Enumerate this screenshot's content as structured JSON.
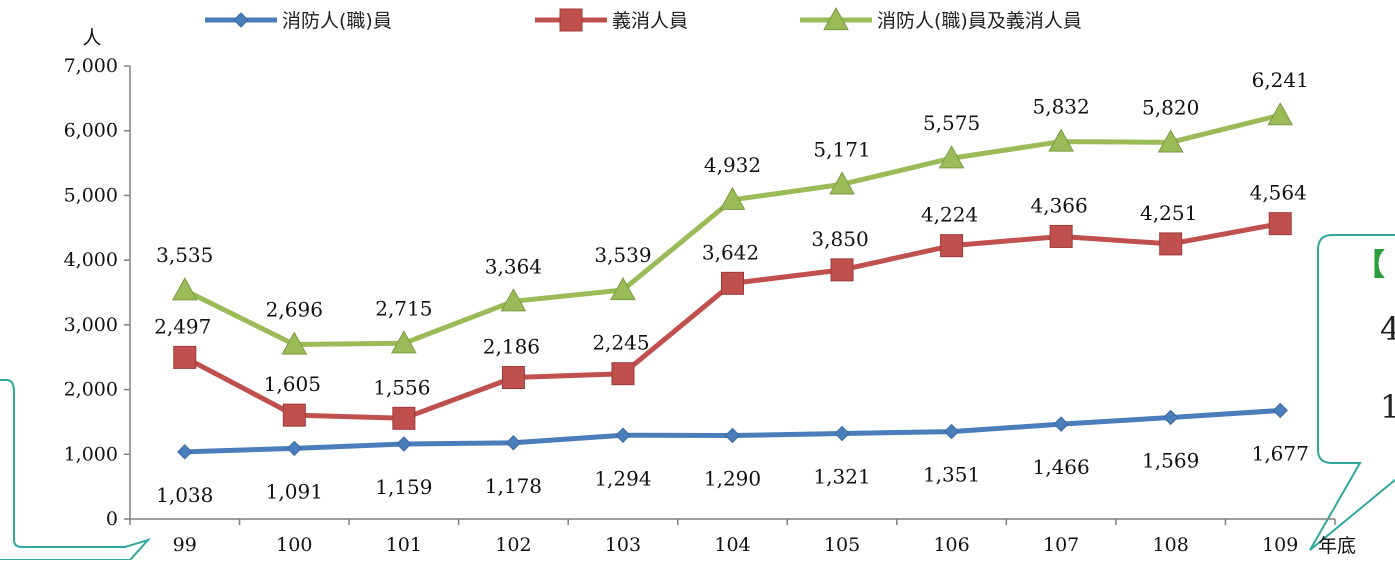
{
  "chart_data": {
    "type": "line",
    "title": "",
    "ylabel": "人",
    "xlabel": "年底",
    "ylim": [
      0,
      7000
    ],
    "yticks": [
      "0",
      "1,000",
      "2,000",
      "3,000",
      "4,000",
      "5,000",
      "6,000",
      "7,000"
    ],
    "categories": [
      "99",
      "100",
      "101",
      "102",
      "103",
      "104",
      "105",
      "106",
      "107",
      "108",
      "109"
    ],
    "legend_position": "top",
    "grid": false,
    "series": [
      {
        "name": "消防人(職)員",
        "color": "#4a7ebb",
        "marker": "diamond",
        "values": [
          1038,
          1091,
          1159,
          1178,
          1294,
          1290,
          1321,
          1351,
          1466,
          1569,
          1677
        ],
        "labels": [
          "1,038",
          "1,091",
          "1,159",
          "1,178",
          "1,294",
          "1,290",
          "1,321",
          "1,351",
          "1,466",
          "1,569",
          "1,677"
        ]
      },
      {
        "name": "義消人員",
        "color": "#c0504d",
        "marker": "square",
        "values": [
          2497,
          1605,
          1556,
          2186,
          2245,
          3642,
          3850,
          4224,
          4366,
          4251,
          4564
        ],
        "labels": [
          "2,497",
          "1,605",
          "1,556",
          "2,186",
          "2,245",
          "3,642",
          "3,850",
          "4,224",
          "4,366",
          "4,251",
          "4,564"
        ]
      },
      {
        "name": "消防人(職)員及義消人員",
        "color": "#9bbb59",
        "marker": "triangle",
        "values": [
          3535,
          2696,
          2715,
          3364,
          3539,
          4932,
          5171,
          5575,
          5832,
          5820,
          6241
        ],
        "labels": [
          "3,535",
          "2,696",
          "2,715",
          "3,364",
          "3,539",
          "4,932",
          "5,171",
          "5,575",
          "5,832",
          "5,820",
          "6,241"
        ]
      }
    ]
  },
  "callout_right": {
    "bracket": "【",
    "line1": "4",
    "line2": "1"
  },
  "colors": {
    "callout_border": "#31a89c",
    "bracket": "#2e9e3c"
  }
}
